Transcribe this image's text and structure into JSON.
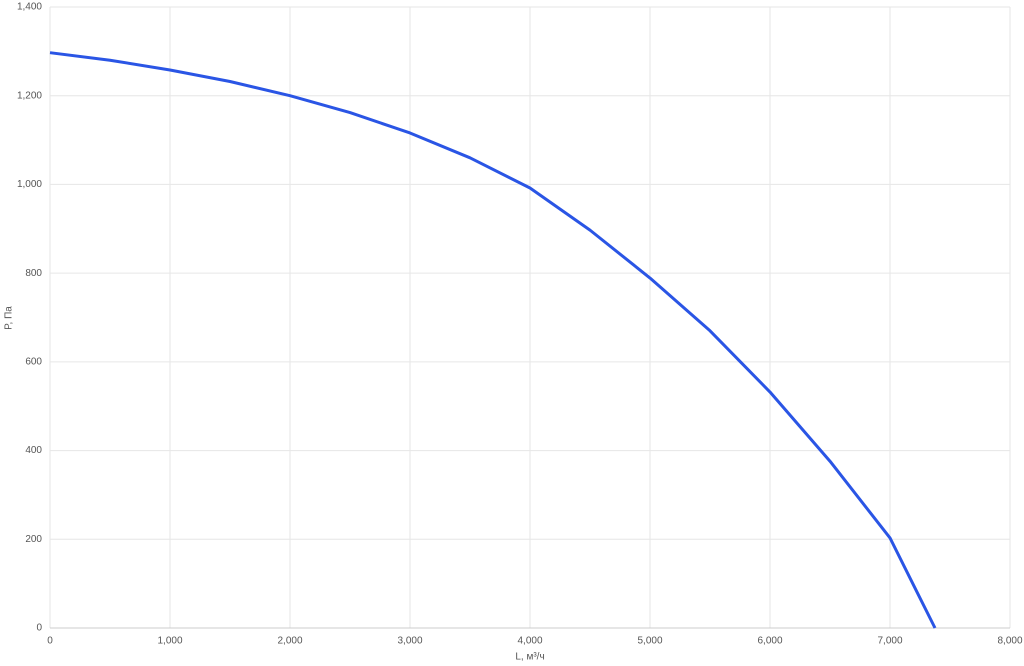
{
  "chart_data": {
    "type": "line",
    "x_label": "L, м³/ч",
    "y_label": "P, Па",
    "x": [
      0,
      500,
      1000,
      1500,
      2000,
      2500,
      3000,
      3500,
      4000,
      4500,
      5000,
      5500,
      6000,
      6500,
      7000,
      7225,
      7375
    ],
    "series": [
      {
        "color": "#2a55e5",
        "values": [
          1297,
          1280,
          1258,
          1232,
          1200,
          1162,
          1116,
          1060,
          992,
          897,
          789,
          670,
          532,
          376,
          203,
          81,
          0
        ]
      }
    ],
    "xlim": [
      0,
      8000
    ],
    "xticks": [
      0,
      {
        "value": 1000,
        "label": "1,000"
      },
      {
        "value": 2000,
        "label": "2,000"
      },
      {
        "value": 3000,
        "label": "3,000"
      },
      {
        "value": 4000,
        "label": "4,000"
      },
      {
        "value": 5000,
        "label": "5,000"
      },
      {
        "value": 6000,
        "label": "6,000"
      },
      {
        "value": 7000,
        "label": "7,000"
      },
      {
        "value": 8000,
        "label": "8,000"
      }
    ],
    "ylim": [
      0,
      1400
    ],
    "yticks": [
      0,
      200,
      400,
      600,
      800,
      {
        "value": 1000,
        "label": "1,000"
      },
      {
        "value": 1200,
        "label": "1,200"
      },
      {
        "value": 1400,
        "label": "1,400"
      }
    ],
    "grid": true
  }
}
